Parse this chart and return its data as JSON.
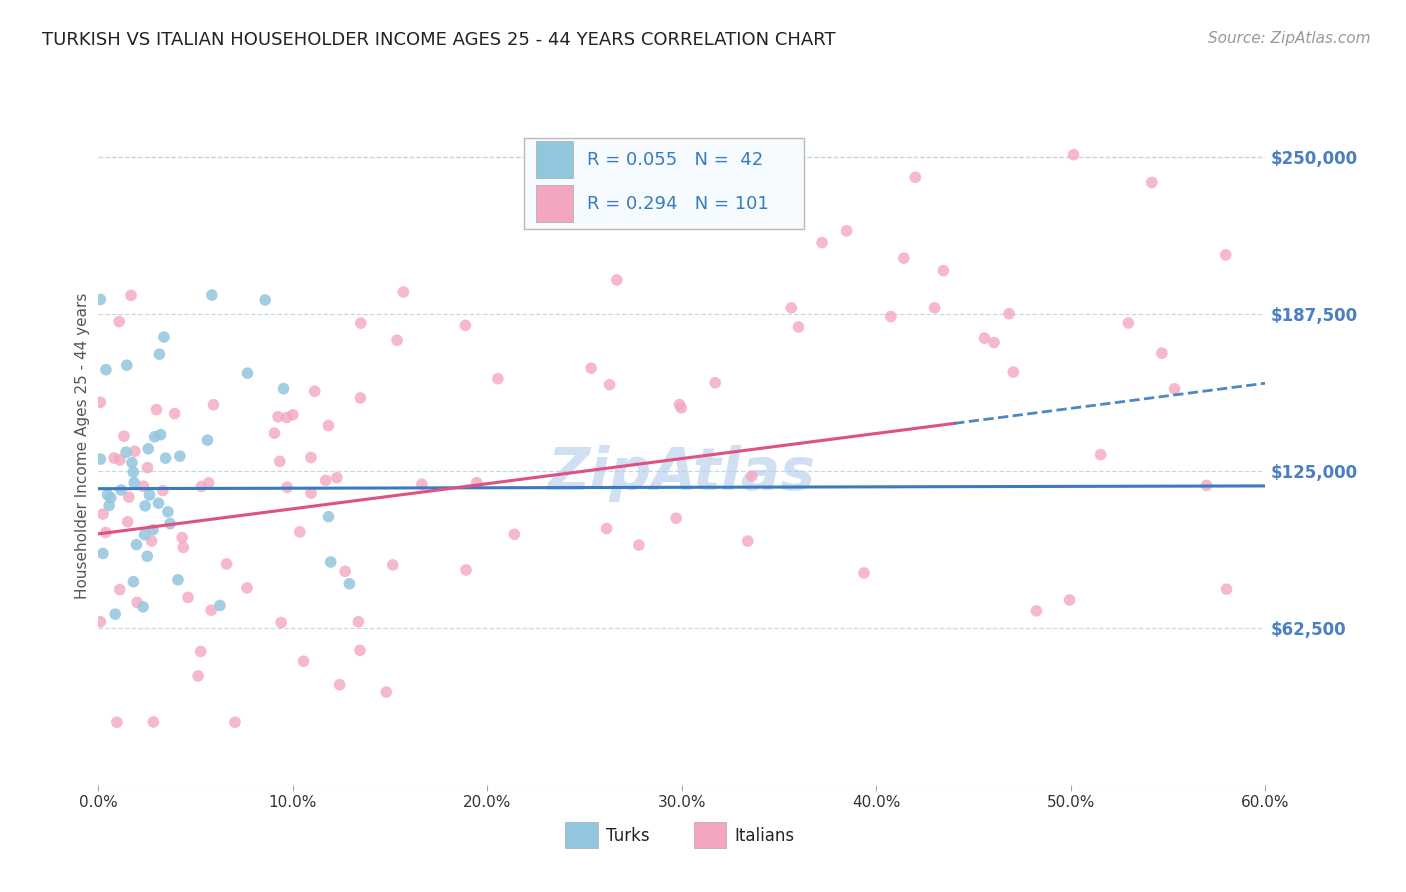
{
  "title": "TURKISH VS ITALIAN HOUSEHOLDER INCOME AGES 25 - 44 YEARS CORRELATION CHART",
  "source": "Source: ZipAtlas.com",
  "ylabel": "Householder Income Ages 25 - 44 years",
  "xlabel_ticks": [
    "0.0%",
    "10.0%",
    "20.0%",
    "30.0%",
    "40.0%",
    "50.0%",
    "60.0%"
  ],
  "ytick_labels": [
    "$62,500",
    "$125,000",
    "$187,500",
    "$250,000"
  ],
  "ytick_values": [
    62500,
    125000,
    187500,
    250000
  ],
  "ylim": [
    0,
    270000
  ],
  "xlim": [
    0.0,
    0.6
  ],
  "turk_R": 0.055,
  "turk_N": 42,
  "italian_R": 0.294,
  "italian_N": 101,
  "turk_color": "#92c5de",
  "italian_color": "#f4a6c0",
  "turk_line_color": "#3a7abf",
  "italian_line_color": "#e05080",
  "background_color": "#ffffff",
  "grid_color": "#c8d8ea",
  "watermark_color": "#aac8e8",
  "title_color": "#222222",
  "axis_label_color": "#4a7fc1",
  "right_label_color": "#4a7fc1",
  "source_color": "#999999",
  "title_fontsize": 13,
  "axis_label_fontsize": 11,
  "tick_label_fontsize": 11,
  "legend_fontsize": 13,
  "source_fontsize": 11,
  "marker_size": 70,
  "legend_text_color": "#000000",
  "legend_num_color": "#3a7abf"
}
